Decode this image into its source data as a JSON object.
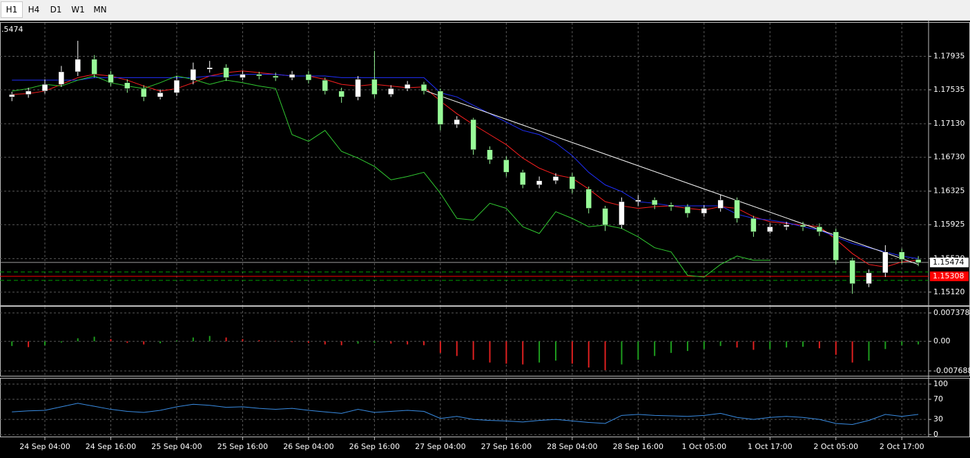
{
  "toolbar": {
    "buttons": [
      "H1",
      "H4",
      "D1",
      "W1",
      "MN"
    ],
    "active": 0
  },
  "chart_data": [
    {
      "type": "candlestick",
      "corner_label": ".5474",
      "categories": [
        null,
        null,
        "24 Sep 04:00",
        null,
        null,
        null,
        "24 Sep 16:00",
        null,
        null,
        null,
        "25 Sep 04:00",
        null,
        null,
        null,
        "25 Sep 16:00",
        null,
        null,
        null,
        "26 Sep 04:00",
        null,
        null,
        null,
        "26 Sep 16:00",
        null,
        null,
        null,
        "27 Sep 04:00",
        null,
        null,
        null,
        "27 Sep 16:00",
        null,
        null,
        null,
        "28 Sep 04:00",
        null,
        null,
        null,
        "28 Sep 16:00",
        null,
        null,
        null,
        "1 Oct 05:00",
        null,
        null,
        null,
        "1 Oct 17:00",
        null,
        null,
        null,
        "2 Oct 05:00",
        null,
        null,
        null,
        "2 Oct 17:00",
        null
      ],
      "open": [
        1.1745,
        1.1748,
        1.1752,
        1.176,
        1.1775,
        1.179,
        1.1772,
        1.1762,
        1.1755,
        1.1745,
        1.175,
        1.1765,
        1.1778,
        1.178,
        1.1768,
        1.1772,
        1.177,
        1.1768,
        1.1772,
        1.1765,
        1.1752,
        1.1745,
        1.1766,
        1.1748,
        1.1755,
        1.176,
        1.1752,
        1.1712,
        1.1718,
        1.1682,
        1.167,
        1.1655,
        1.164,
        1.1645,
        1.165,
        1.1635,
        1.1612,
        1.1592,
        1.162,
        1.1622,
        1.1616,
        1.1614,
        1.1606,
        1.1612,
        1.1622,
        1.16,
        1.1584,
        1.159,
        1.1592,
        1.159,
        1.1584,
        1.155,
        1.1522,
        1.1535,
        1.156,
        1.1551
      ],
      "high": [
        1.1751,
        1.1756,
        1.1766,
        1.1782,
        1.1812,
        1.1795,
        1.1776,
        1.1766,
        1.1759,
        1.1754,
        1.177,
        1.1786,
        1.1788,
        1.1784,
        1.1776,
        1.1775,
        1.1774,
        1.1776,
        1.1776,
        1.1768,
        1.1756,
        1.177,
        1.18,
        1.1759,
        1.1764,
        1.1763,
        1.1755,
        1.1722,
        1.172,
        1.1686,
        1.1674,
        1.1658,
        1.165,
        1.1654,
        1.1654,
        1.1638,
        1.1615,
        1.1625,
        1.1628,
        1.1625,
        1.1619,
        1.1617,
        1.1616,
        1.1628,
        1.1625,
        1.1603,
        1.1594,
        1.1596,
        1.1596,
        1.1594,
        1.1588,
        1.1553,
        1.1539,
        1.1568,
        1.1564,
        1.1555
      ],
      "low": [
        1.174,
        1.1744,
        1.1749,
        1.1757,
        1.177,
        1.1768,
        1.1758,
        1.175,
        1.174,
        1.1742,
        1.1746,
        1.176,
        1.1774,
        1.1764,
        1.1765,
        1.1766,
        1.1764,
        1.1765,
        1.1761,
        1.1748,
        1.1738,
        1.1741,
        1.1744,
        1.1745,
        1.1752,
        1.1748,
        1.1705,
        1.1708,
        1.1676,
        1.1665,
        1.165,
        1.1636,
        1.1636,
        1.1641,
        1.163,
        1.1606,
        1.1585,
        1.1588,
        1.1615,
        1.1611,
        1.1609,
        1.1601,
        1.1602,
        1.1608,
        1.1595,
        1.1578,
        1.1582,
        1.1586,
        1.1585,
        1.1579,
        1.1545,
        1.151,
        1.1518,
        1.153,
        1.1546,
        1.1543
      ],
      "close": [
        1.1748,
        1.1752,
        1.176,
        1.1775,
        1.179,
        1.1772,
        1.1762,
        1.1755,
        1.1745,
        1.175,
        1.1765,
        1.1778,
        1.178,
        1.1768,
        1.1772,
        1.177,
        1.1768,
        1.1772,
        1.1765,
        1.1752,
        1.1745,
        1.1766,
        1.1748,
        1.1755,
        1.176,
        1.1752,
        1.1712,
        1.1718,
        1.1682,
        1.167,
        1.1655,
        1.164,
        1.1645,
        1.165,
        1.1635,
        1.1612,
        1.1592,
        1.162,
        1.1622,
        1.1616,
        1.1614,
        1.1606,
        1.1612,
        1.1622,
        1.16,
        1.1584,
        1.159,
        1.1592,
        1.159,
        1.1584,
        1.155,
        1.1522,
        1.1535,
        1.156,
        1.1551,
        1.1547
      ],
      "up_color": "#ffffff",
      "down_color": "#98fb98",
      "series": [
        {
          "color": "#ff2020",
          "values": [
            1.1748,
            1.1749,
            1.1752,
            1.176,
            1.1768,
            1.1772,
            1.177,
            1.1765,
            1.1758,
            1.1752,
            1.1755,
            1.1762,
            1.177,
            1.1774,
            1.1776,
            1.1774,
            1.1772,
            1.177,
            1.177,
            1.1766,
            1.176,
            1.1758,
            1.176,
            1.1758,
            1.1756,
            1.1757,
            1.174,
            1.1725,
            1.1712,
            1.17,
            1.1688,
            1.1672,
            1.166,
            1.1652,
            1.1648,
            1.1635,
            1.162,
            1.1615,
            1.1612,
            1.1614,
            1.1615,
            1.1612,
            1.161,
            1.1614,
            1.1612,
            1.1602,
            1.1596,
            1.1594,
            1.1592,
            1.159,
            1.1575,
            1.1558,
            1.1545,
            1.1542,
            1.1548,
            1.155
          ]
        },
        {
          "color": "#2030ff",
          "values": [
            1.1765,
            1.1765,
            1.1765,
            1.1765,
            1.1765,
            1.1768,
            1.1768,
            1.1768,
            1.1768,
            1.1768,
            1.1768,
            1.1768,
            1.177,
            1.177,
            1.1772,
            1.1772,
            1.1772,
            1.177,
            1.177,
            1.177,
            1.1768,
            1.1768,
            1.1768,
            1.1768,
            1.1768,
            1.1768,
            1.175,
            1.1745,
            1.1735,
            1.1725,
            1.1715,
            1.1705,
            1.17,
            1.169,
            1.1675,
            1.1655,
            1.164,
            1.1632,
            1.162,
            1.1618,
            1.1615,
            1.1615,
            1.1615,
            1.1615,
            1.1605,
            1.16,
            1.1598,
            1.1595,
            1.159,
            1.1586,
            1.1578,
            1.157,
            1.1565,
            1.156,
            1.1555,
            1.1552
          ]
        },
        {
          "color": "#32cd32",
          "values": [
            1.1752,
            1.1755,
            1.176,
            1.1758,
            1.1765,
            1.177,
            1.1762,
            1.1758,
            1.1755,
            1.1762,
            1.177,
            1.1766,
            1.176,
            1.1765,
            1.1762,
            1.1758,
            1.1755,
            1.17,
            1.1692,
            1.1705,
            1.168,
            1.1672,
            1.1662,
            1.1646,
            1.165,
            1.1655,
            1.163,
            1.16,
            1.1598,
            1.1618,
            1.1612,
            1.159,
            1.1582,
            1.1608,
            1.16,
            1.159,
            1.1592,
            1.1588,
            1.1578,
            1.1565,
            1.156,
            1.1532,
            1.153,
            1.1545,
            1.1555,
            1.155,
            1.155,
            null,
            null,
            null,
            null,
            null,
            null,
            null,
            null,
            null
          ]
        }
      ],
      "trendline": {
        "x": [
          25,
          55
        ],
        "values": [
          1.1753,
          1.1545
        ],
        "color": "#ffffff"
      },
      "hlines": [
        {
          "value": 1.1536,
          "color": "#00a000",
          "dashed": true
        },
        {
          "value": 1.1526,
          "color": "#00a000",
          "dashed": true
        },
        {
          "value": 1.15474,
          "color": "#a0a0a0",
          "box": "#ffffff",
          "text_color": "#000000"
        },
        {
          "value": 1.15308,
          "color": "#ff0000",
          "box": "#ff0000",
          "text_color": "#ffffff"
        }
      ],
      "ylim": [
        1.14962,
        1.18335
      ],
      "yticks": [
        1.17935,
        1.17535,
        {
          "value": 1.1713,
          "label": "1.17130"
        },
        {
          "value": 1.1673,
          "label": "1.16730"
        },
        1.16325,
        1.15925,
        {
          "value": 1.1552,
          "label": "1.15520"
        },
        {
          "value": 1.1512,
          "label": "1.15120"
        }
      ],
      "grid": true
    },
    {
      "type": "bar",
      "up_color": "#1e9e1e",
      "down_color": "#e02020",
      "values": [
        -0.0012,
        -0.0015,
        -0.001,
        -0.0003,
        0.0008,
        0.0012,
        0.0006,
        -0.0004,
        -0.0008,
        -0.0005,
        0.0002,
        0.001,
        0.0014,
        0.001,
        0.0006,
        0.0003,
        0.0001,
        -0.0002,
        -0.0004,
        -0.0008,
        -0.001,
        -0.0006,
        -0.0004,
        -0.0006,
        -0.0008,
        -0.001,
        -0.003,
        -0.0038,
        -0.0048,
        -0.0055,
        -0.0058,
        -0.006,
        -0.0055,
        -0.005,
        -0.0058,
        -0.0068,
        -0.0075,
        -0.006,
        -0.0048,
        -0.0038,
        -0.003,
        -0.0025,
        -0.002,
        -0.0012,
        -0.0016,
        -0.0022,
        -0.002,
        -0.0016,
        -0.0014,
        -0.0018,
        -0.0035,
        -0.0055,
        -0.005,
        -0.002,
        -0.001,
        -0.0008
      ],
      "ylim": [
        -0.00895,
        0.009
      ],
      "yticks": [
        0.007378,
        {
          "value": 0,
          "label": "0.00"
        },
        -0.007688
      ],
      "grid": true
    },
    {
      "type": "line",
      "color": "#3a8ee6",
      "values": [
        45,
        47,
        48,
        55,
        62,
        56,
        50,
        46,
        44,
        48,
        55,
        60,
        58,
        54,
        55,
        52,
        50,
        52,
        48,
        45,
        42,
        50,
        44,
        46,
        48,
        46,
        32,
        36,
        30,
        28,
        27,
        25,
        28,
        30,
        27,
        24,
        22,
        38,
        40,
        38,
        37,
        36,
        38,
        42,
        34,
        30,
        34,
        36,
        34,
        30,
        22,
        20,
        28,
        40,
        36,
        40
      ],
      "ylim": [
        -4,
        111
      ],
      "yticks": [
        100,
        70,
        30,
        0
      ],
      "grid": true
    }
  ]
}
